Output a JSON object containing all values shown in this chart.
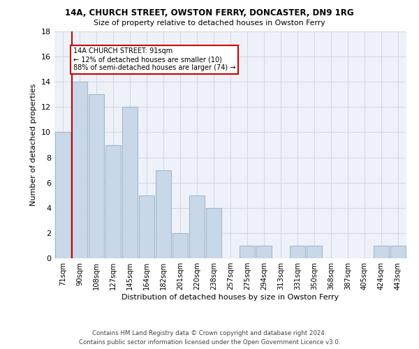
{
  "title1": "14A, CHURCH STREET, OWSTON FERRY, DONCASTER, DN9 1RG",
  "title2": "Size of property relative to detached houses in Owston Ferry",
  "xlabel": "Distribution of detached houses by size in Owston Ferry",
  "ylabel": "Number of detached properties",
  "categories": [
    "71sqm",
    "90sqm",
    "108sqm",
    "127sqm",
    "145sqm",
    "164sqm",
    "182sqm",
    "201sqm",
    "220sqm",
    "238sqm",
    "257sqm",
    "275sqm",
    "294sqm",
    "313sqm",
    "331sqm",
    "350sqm",
    "368sqm",
    "387sqm",
    "405sqm",
    "424sqm",
    "443sqm"
  ],
  "values": [
    10,
    14,
    13,
    9,
    12,
    5,
    7,
    2,
    5,
    4,
    0,
    1,
    1,
    0,
    1,
    1,
    0,
    0,
    0,
    1,
    1
  ],
  "bar_color": "#c8d8e8",
  "bar_edge_color": "#a0b8cc",
  "annotation_text": "14A CHURCH STREET: 91sqm\n← 12% of detached houses are smaller (10)\n88% of semi-detached houses are larger (74) →",
  "annotation_box_color": "#ffffff",
  "annotation_box_edge": "#cc0000",
  "red_line_color": "#cc0000",
  "footer": "Contains HM Land Registry data © Crown copyright and database right 2024.\nContains public sector information licensed under the Open Government Licence v3.0.",
  "ylim": [
    0,
    18
  ],
  "yticks": [
    0,
    2,
    4,
    6,
    8,
    10,
    12,
    14,
    16,
    18
  ],
  "grid_color": "#d0d8e8",
  "background_color": "#eef2f8"
}
